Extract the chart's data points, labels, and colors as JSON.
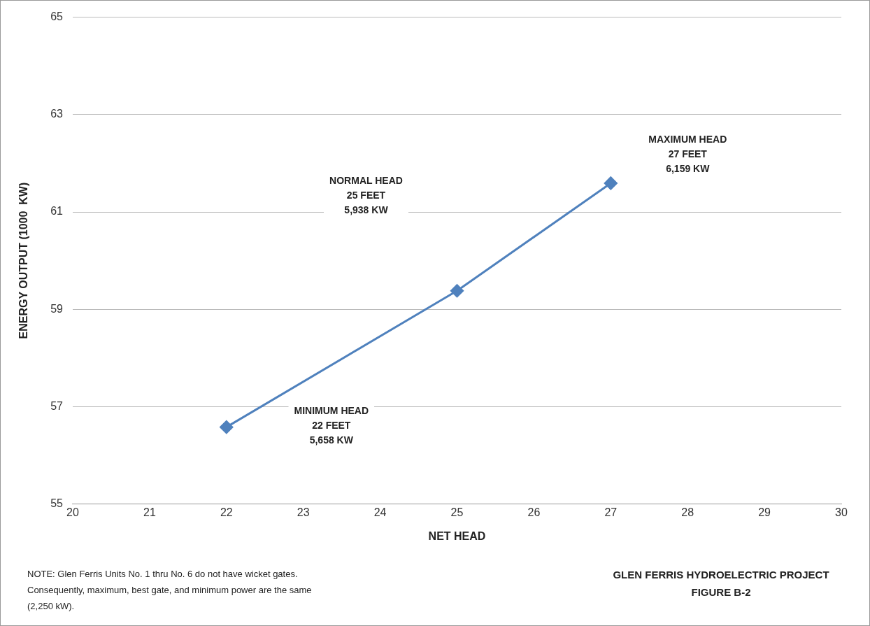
{
  "chart_data": {
    "type": "line",
    "xlabel": "NET HEAD",
    "ylabel": "ENERGY OUTPUT (1000  KW)",
    "x": [
      22,
      25,
      27
    ],
    "series": [
      {
        "color": "#4f81bd",
        "values": [
          56.58,
          59.38,
          61.59
        ]
      }
    ],
    "xlim": [
      20,
      30
    ],
    "xticks": [
      20,
      21,
      22,
      23,
      24,
      25,
      26,
      27,
      28,
      29,
      30
    ],
    "ylim": [
      55,
      65
    ],
    "yticks": [
      55,
      57,
      59,
      61,
      63,
      65
    ],
    "grid": "y",
    "legend": false,
    "marker": "diamond",
    "line_style": "solid",
    "annotations": [
      "MINIMUM HEAD\n22 FEET\n5,658 KW",
      "NORMAL HEAD\n25 FEET\n5,938 KW",
      "MAXIMUM HEAD\n27 FEET\n6,159 KW",
      "NOTE: Glen Ferris Units No. 1 thru No. 6  do not have wicket gates. Consequently, maximum, best gate, and minimum power are the same (2,250  kW).",
      "GLEN FERRIS HYDROELECTRIC PROJECT\nFIGURE  B-2"
    ]
  }
}
